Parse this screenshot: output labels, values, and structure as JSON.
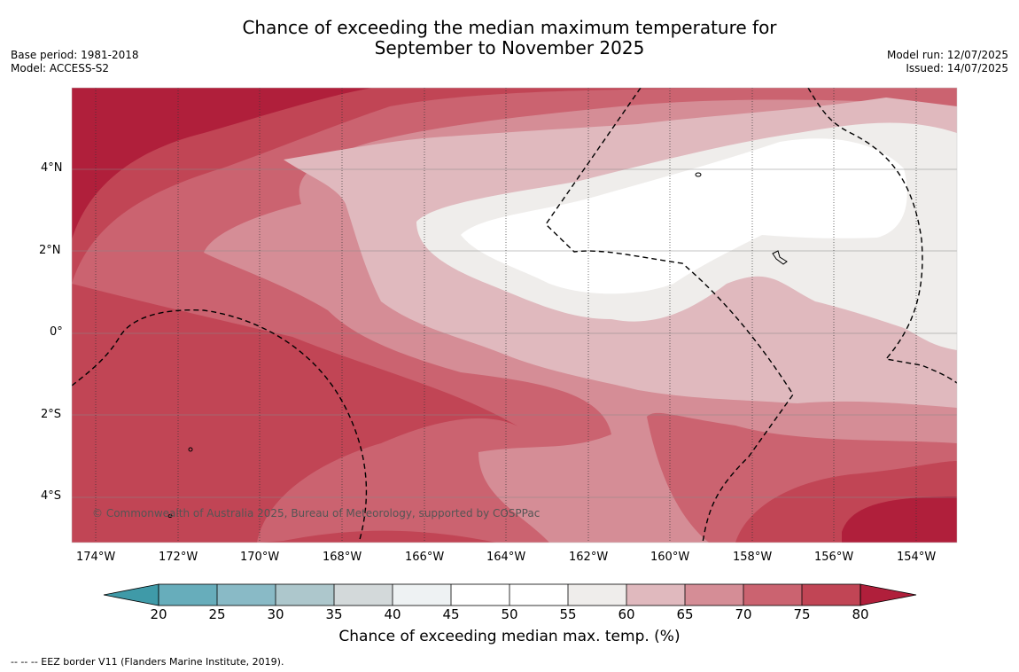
{
  "header": {
    "title_line1": "Chance of exceeding the median maximum temperature for",
    "title_line2": "September to November 2025",
    "base_period": "Base period: 1981-2018",
    "model": "Model: ACCESS-S2",
    "model_run": "Model run: 12/07/2025",
    "issued": "Issued: 14/07/2025"
  },
  "map": {
    "lat_ticks": [
      "4°N",
      "2°N",
      "0°",
      "2°S",
      "4°S"
    ],
    "lon_ticks": [
      "174°W",
      "172°W",
      "170°W",
      "168°W",
      "166°W",
      "164°W",
      "162°W",
      "160°W",
      "158°W",
      "156°W",
      "154°W"
    ],
    "copyright": "© Commonwealth of Australia 2025, Bureau of Meteorology, supported by COSPPac"
  },
  "colorbar": {
    "labels": [
      "20",
      "25",
      "30",
      "35",
      "40",
      "45",
      "50",
      "55",
      "60",
      "65",
      "70",
      "75",
      "80"
    ],
    "colors": [
      "#3f9aa8",
      "#67adbb",
      "#89bac6",
      "#adc7cc",
      "#d3d9da",
      "#eef2f3",
      "#ffffff",
      "#ffffff",
      "#efedeb",
      "#e0b9be",
      "#d58d96",
      "#cb6370",
      "#c14555",
      "#b01f3b"
    ],
    "title": "Chance of exceeding median max. temp. (%)"
  },
  "footnote": "-- -- -- EEZ border V11 (Flanders Marine Institute, 2019)."
}
